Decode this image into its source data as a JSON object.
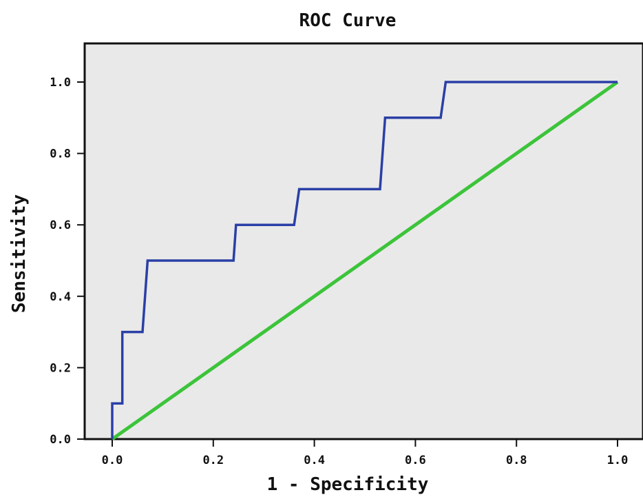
{
  "chart_data": {
    "type": "line",
    "title": "ROC Curve",
    "xlabel": "1 - Specificity",
    "ylabel": "Sensitivity",
    "xlim": [
      0,
      1
    ],
    "ylim": [
      0,
      1
    ],
    "x_ticks": [
      "0.0",
      "0.2",
      "0.4",
      "0.6",
      "0.8",
      "1.0"
    ],
    "y_ticks": [
      "0.0",
      "0.2",
      "0.4",
      "0.6",
      "0.8",
      "1.0"
    ],
    "grid": false,
    "series": [
      {
        "color": "#2a3fa6",
        "points": [
          [
            0.0,
            0.0
          ],
          [
            0.0,
            0.1
          ],
          [
            0.02,
            0.1
          ],
          [
            0.02,
            0.3
          ],
          [
            0.06,
            0.3
          ],
          [
            0.07,
            0.5
          ],
          [
            0.24,
            0.5
          ],
          [
            0.245,
            0.6
          ],
          [
            0.36,
            0.6
          ],
          [
            0.37,
            0.7
          ],
          [
            0.53,
            0.7
          ],
          [
            0.54,
            0.9
          ],
          [
            0.65,
            0.9
          ],
          [
            0.66,
            1.0
          ],
          [
            1.0,
            1.0
          ]
        ]
      },
      {
        "color": "#3cc43a",
        "points": [
          [
            0.0,
            0.0
          ],
          [
            1.0,
            1.0
          ]
        ]
      }
    ]
  }
}
